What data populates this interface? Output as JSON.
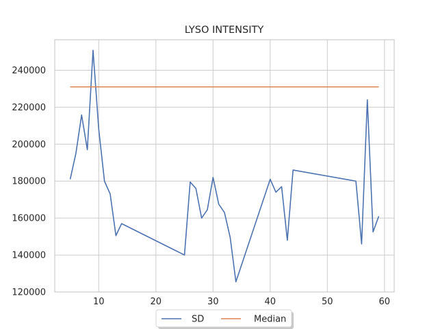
{
  "chart_data": {
    "type": "line",
    "title": "LYSO INTENSITY",
    "xlabel": "",
    "ylabel": "",
    "xlim": [
      2.3,
      61.7
    ],
    "ylim": [
      120000,
      256500
    ],
    "x_ticks": [
      10,
      20,
      30,
      40,
      50,
      60
    ],
    "y_ticks": [
      120000,
      140000,
      160000,
      180000,
      200000,
      220000,
      240000
    ],
    "grid": true,
    "legend_position": "bottom-center",
    "series": [
      {
        "name": "SD",
        "color": "#4c72b0",
        "points": [
          {
            "x": 5,
            "y": 181000
          },
          {
            "x": 6,
            "y": 195000
          },
          {
            "x": 7,
            "y": 215800
          },
          {
            "x": 8,
            "y": 197000
          },
          {
            "x": 9,
            "y": 250800
          },
          {
            "x": 10,
            "y": 208000
          },
          {
            "x": 11,
            "y": 180000
          },
          {
            "x": 12,
            "y": 173000
          },
          {
            "x": 13,
            "y": 150500
          },
          {
            "x": 14,
            "y": 157000
          },
          {
            "x": 25,
            "y": 140000
          },
          {
            "x": 26,
            "y": 179500
          },
          {
            "x": 27,
            "y": 176000
          },
          {
            "x": 28,
            "y": 160000
          },
          {
            "x": 29,
            "y": 164500
          },
          {
            "x": 30,
            "y": 182000
          },
          {
            "x": 31,
            "y": 167500
          },
          {
            "x": 32,
            "y": 163000
          },
          {
            "x": 33,
            "y": 149500
          },
          {
            "x": 34,
            "y": 125500
          },
          {
            "x": 40,
            "y": 181000
          },
          {
            "x": 41,
            "y": 174000
          },
          {
            "x": 42,
            "y": 177000
          },
          {
            "x": 43,
            "y": 148000
          },
          {
            "x": 44,
            "y": 186000
          },
          {
            "x": 55,
            "y": 180000
          },
          {
            "x": 56,
            "y": 146000
          },
          {
            "x": 57,
            "y": 224000
          },
          {
            "x": 58,
            "y": 152500
          },
          {
            "x": 59,
            "y": 161000
          }
        ]
      },
      {
        "name": "Median",
        "color": "#dd8452",
        "points": [
          {
            "x": 5,
            "y": 231000
          },
          {
            "x": 59,
            "y": 231000
          }
        ]
      }
    ]
  }
}
